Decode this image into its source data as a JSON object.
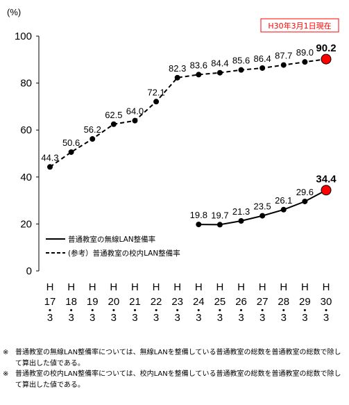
{
  "chart_data": {
    "type": "line",
    "unit_label": "(%)",
    "date_badge": "H30年3月1日現在",
    "categories": [
      [
        "H",
        "17",
        "・",
        "3"
      ],
      [
        "H",
        "18",
        "・",
        "3"
      ],
      [
        "H",
        "19",
        "・",
        "3"
      ],
      [
        "H",
        "20",
        "・",
        "3"
      ],
      [
        "H",
        "21",
        "・",
        "3"
      ],
      [
        "H",
        "22",
        "・",
        "3"
      ],
      [
        "H",
        "23",
        "・",
        "3"
      ],
      [
        "H",
        "24",
        "・",
        "3"
      ],
      [
        "H",
        "25",
        "・",
        "3"
      ],
      [
        "H",
        "26",
        "・",
        "3"
      ],
      [
        "H",
        "27",
        "・",
        "3"
      ],
      [
        "H",
        "28",
        "・",
        "3"
      ],
      [
        "H",
        "29",
        "・",
        "3"
      ],
      [
        "H",
        "30",
        "・",
        "3"
      ]
    ],
    "yticks": [
      "0",
      "20",
      "40",
      "60",
      "80",
      "100"
    ],
    "ylim": [
      0,
      100
    ],
    "grid": false,
    "legend_position": "middle-left",
    "highlight_color": "#ff0000",
    "series": [
      {
        "name": "普通教室の無線LAN整備率",
        "style": "solid",
        "color": "#000000",
        "values": [
          null,
          null,
          null,
          null,
          null,
          null,
          null,
          19.8,
          19.7,
          21.3,
          23.5,
          26.1,
          29.6,
          34.4
        ],
        "labels": [
          "",
          "",
          "",
          "",
          "",
          "",
          "",
          "19.8",
          "19.7",
          "21.3",
          "23.5",
          "26.1",
          "29.6",
          "34.4"
        ]
      },
      {
        "name": "(参考）普通教室の校内LAN整備率",
        "style": "dashed",
        "color": "#000000",
        "values": [
          44.3,
          50.6,
          56.2,
          62.5,
          64.0,
          72.1,
          82.3,
          83.6,
          84.4,
          85.6,
          86.4,
          87.7,
          89.0,
          90.2
        ],
        "labels": [
          "44.3",
          "50.6",
          "56.2",
          "62.5",
          "64.0",
          "72.1",
          "82.3",
          "83.6",
          "84.4",
          "85.6",
          "86.4",
          "87.7",
          "89.0",
          "90.2"
        ]
      }
    ]
  },
  "notes": [
    {
      "mark": "※",
      "text": "普通教室の無線LAN整備率については、無線LANを整備している普通教室の総数を普通教室の総数で除して算出した値である。"
    },
    {
      "mark": "※",
      "text": "普通教室の校内LAN整備率については、校内LANを整備している普通教室の総数を普通教室の総数で除して算出した値である。"
    }
  ]
}
